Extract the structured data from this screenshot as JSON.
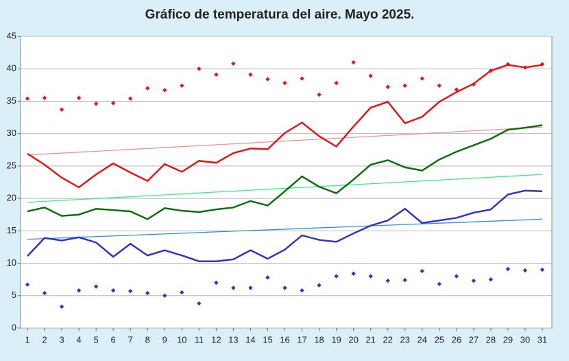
{
  "chart_data": {
    "type": "line",
    "title": "Gráfico de temperatura del aire. Mayo 2025.",
    "x": [
      1,
      2,
      3,
      4,
      5,
      6,
      7,
      8,
      9,
      10,
      11,
      12,
      13,
      14,
      15,
      16,
      17,
      18,
      19,
      20,
      21,
      22,
      23,
      24,
      25,
      26,
      27,
      28,
      29,
      30,
      31
    ],
    "xlim": [
      1,
      31
    ],
    "xticks": [
      1,
      2,
      3,
      4,
      5,
      6,
      7,
      8,
      9,
      10,
      11,
      12,
      13,
      14,
      15,
      16,
      17,
      18,
      19,
      20,
      21,
      22,
      23,
      24,
      25,
      26,
      27,
      28,
      29,
      30,
      31
    ],
    "ylim": [
      0,
      45
    ],
    "yticks": [
      0,
      5,
      10,
      15,
      20,
      25,
      30,
      35,
      40,
      45
    ],
    "grid": true,
    "series": [
      {
        "style": "markers",
        "color": "#e01818",
        "values": [
          35.4,
          35.5,
          33.7,
          35.5,
          34.6,
          34.7,
          35.4,
          37,
          36.7,
          37.4,
          40,
          39.1,
          40.8,
          39.1,
          38.4,
          37.8,
          38.5,
          36,
          37.8,
          41,
          38.9,
          37.2,
          37.4,
          38.5,
          37.4,
          36.8,
          37.6,
          39.7,
          40.7,
          40.2,
          40.7
        ]
      },
      {
        "style": "line",
        "color": "#e01818",
        "values": [
          26.9,
          25.2,
          23.2,
          21.7,
          23.7,
          25.4,
          24,
          22.7,
          25.3,
          24.1,
          25.8,
          25.5,
          27,
          27.7,
          27.6,
          30.1,
          31.7,
          29.6,
          28,
          31.1,
          34,
          34.9,
          31.6,
          32.6,
          34.9,
          36.4,
          37.7,
          39.7,
          40.6,
          40.2,
          40.6
        ]
      },
      {
        "style": "line",
        "color": "#0f6e0f",
        "values": [
          18,
          18.6,
          17.3,
          17.5,
          18.4,
          18.2,
          18,
          16.8,
          18.5,
          18.1,
          17.9,
          18.3,
          18.6,
          19.6,
          18.9,
          21.1,
          23.4,
          21.8,
          20.8,
          22.9,
          25.2,
          25.9,
          24.8,
          24.3,
          26,
          27.2,
          28.2,
          29.2,
          30.6,
          30.9,
          31.3
        ]
      },
      {
        "style": "line",
        "color": "#3434c0",
        "values": [
          11.1,
          13.9,
          13.5,
          14,
          13.2,
          11,
          13,
          11.2,
          12,
          11.2,
          10.3,
          10.3,
          10.6,
          12,
          10.7,
          12.1,
          14.3,
          13.6,
          13.3,
          14.6,
          15.8,
          16.6,
          18.4,
          16.2,
          16.6,
          17,
          17.8,
          18.3,
          20.6,
          21.2,
          21.1
        ]
      },
      {
        "style": "markers",
        "color": "#3434c0",
        "values": [
          6.7,
          5.4,
          3.3,
          5.8,
          6.4,
          5.8,
          5.7,
          5.4,
          5,
          5.5,
          3.8,
          7,
          6.2,
          6.2,
          7.8,
          6.2,
          5.8,
          6.6,
          8,
          8.4,
          8,
          7.3,
          7.4,
          8.8,
          6.8,
          8,
          7.3,
          7.5,
          9.1,
          8.9,
          9
        ]
      },
      {
        "style": "trend",
        "color": "#f09090",
        "x": [
          1,
          31
        ],
        "values": [
          26.7,
          31
        ]
      },
      {
        "style": "trend",
        "color": "#40ee80",
        "x": [
          1,
          31
        ],
        "values": [
          19.4,
          23.7
        ]
      },
      {
        "style": "trend",
        "color": "#3090e0",
        "x": [
          1,
          31
        ],
        "values": [
          13.7,
          16.8
        ]
      }
    ]
  }
}
